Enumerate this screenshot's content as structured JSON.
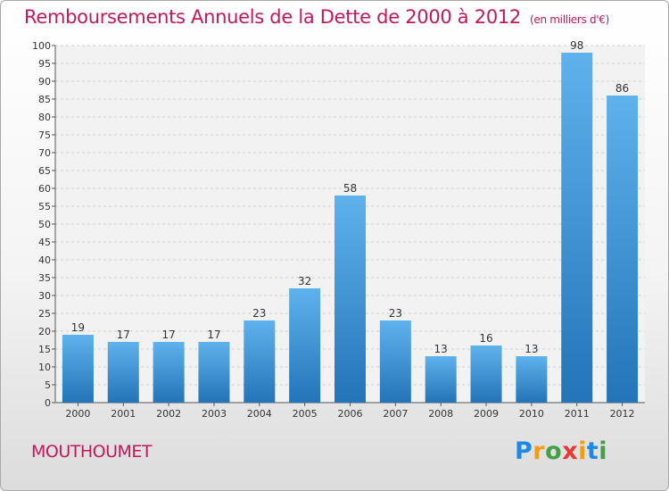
{
  "chart_data": {
    "type": "bar",
    "title": "Remboursements Annuels de la Dette de 2000 à 2012",
    "subtitle": "(en milliers d'€)",
    "categories": [
      "2000",
      "2001",
      "2002",
      "2003",
      "2004",
      "2005",
      "2006",
      "2007",
      "2008",
      "2009",
      "2010",
      "2011",
      "2012"
    ],
    "values": [
      19,
      17,
      17,
      17,
      23,
      32,
      58,
      23,
      13,
      16,
      13,
      98,
      86
    ],
    "ylim": [
      0,
      100
    ],
    "yticks": [
      0,
      5,
      10,
      15,
      20,
      25,
      30,
      35,
      40,
      45,
      50,
      55,
      60,
      65,
      70,
      75,
      80,
      85,
      90,
      95,
      100
    ],
    "grid": true,
    "bar_color": "#3d95d6",
    "title_color": "#c2185b"
  },
  "footer": {
    "town": "MOUTHOUMET"
  },
  "logo": {
    "letters": [
      "P",
      "r",
      "o",
      "x",
      "i",
      "t",
      "i"
    ],
    "colors": [
      "#1e88e5",
      "#f39c12",
      "#43a047",
      "#e53935",
      "#f39c12",
      "#1e88e5",
      "#43a047"
    ]
  }
}
